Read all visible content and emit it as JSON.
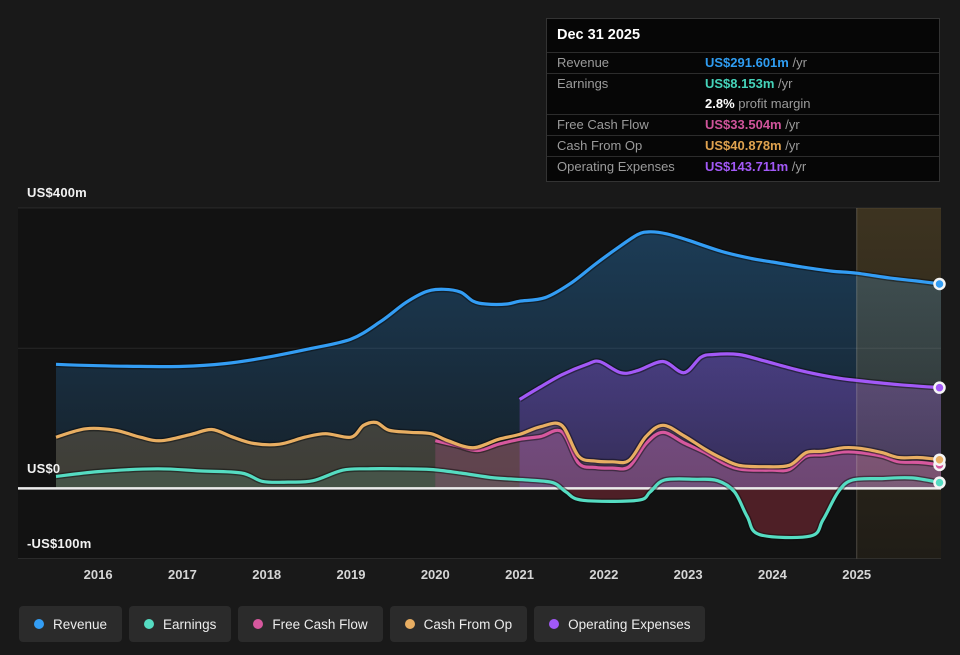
{
  "tooltip": {
    "title": "Dec 31 2025",
    "rows": [
      {
        "label": "Revenue",
        "value": "US$291.601m",
        "unit": "/yr",
        "color": "#2f9df2",
        "sub": false
      },
      {
        "label": "Earnings",
        "value": "US$8.153m",
        "unit": "/yr",
        "color": "#45d4ba",
        "sub": false
      },
      {
        "label": "",
        "value": "2.8%",
        "unit": "profit margin",
        "color": "#ffffff",
        "sub": true
      },
      {
        "label": "Free Cash Flow",
        "value": "US$33.504m",
        "unit": "/yr",
        "color": "#d0549b",
        "sub": false
      },
      {
        "label": "Cash From Op",
        "value": "US$40.878m",
        "unit": "/yr",
        "color": "#dfa24f",
        "sub": false
      },
      {
        "label": "Operating Expenses",
        "value": "US$143.711m",
        "unit": "/yr",
        "color": "#a259f7",
        "sub": false
      }
    ]
  },
  "y_axis": {
    "labels": [
      "US$400m",
      "US$0",
      "-US$100m"
    ]
  },
  "legend": {
    "items": [
      {
        "label": "Revenue",
        "color": "#339df4"
      },
      {
        "label": "Earnings",
        "color": "#55dcc2"
      },
      {
        "label": "Free Cash Flow",
        "color": "#d6589e"
      },
      {
        "label": "Cash From Op",
        "color": "#e8ae62"
      },
      {
        "label": "Operating Expenses",
        "color": "#a259f7"
      }
    ]
  },
  "chart_data": {
    "type": "area",
    "title": "Company financials over time (US$m per year)",
    "x_range": [
      2015.5,
      2026
    ],
    "y_range": [
      -100,
      400
    ],
    "y_unit": "US$m",
    "x_ticks": [
      2016,
      2017,
      2018,
      2019,
      2020,
      2021,
      2022,
      2023,
      2024,
      2025
    ],
    "gridlines_y": [
      400,
      200,
      -100
    ],
    "zero_line": 0,
    "forecast_start_x": 2025,
    "legend_position": "bottom",
    "series": [
      {
        "name": "Revenue",
        "color": "#339df4",
        "points": [
          [
            2015.5,
            177
          ],
          [
            2016,
            175
          ],
          [
            2016.5,
            174
          ],
          [
            2017,
            174
          ],
          [
            2017.5,
            178
          ],
          [
            2018,
            187
          ],
          [
            2018.5,
            199
          ],
          [
            2019,
            213
          ],
          [
            2019.35,
            238
          ],
          [
            2019.65,
            265
          ],
          [
            2019.9,
            281
          ],
          [
            2020.1,
            284
          ],
          [
            2020.3,
            280
          ],
          [
            2020.45,
            267
          ],
          [
            2020.6,
            263
          ],
          [
            2020.85,
            263
          ],
          [
            2021,
            267
          ],
          [
            2021.3,
            272
          ],
          [
            2021.6,
            292
          ],
          [
            2021.9,
            320
          ],
          [
            2022.15,
            342
          ],
          [
            2022.4,
            362
          ],
          [
            2022.55,
            366
          ],
          [
            2022.75,
            363
          ],
          [
            2023,
            354
          ],
          [
            2023.4,
            338
          ],
          [
            2023.75,
            328
          ],
          [
            2024,
            323
          ],
          [
            2024.35,
            316
          ],
          [
            2024.7,
            310
          ],
          [
            2025,
            307
          ],
          [
            2025.4,
            300
          ],
          [
            2025.7,
            296
          ],
          [
            2026,
            291.6
          ]
        ]
      },
      {
        "name": "Earnings",
        "color": "#55dcc2",
        "negative_fill": "#c43a50",
        "points": [
          [
            2015.5,
            17
          ],
          [
            2016,
            24
          ],
          [
            2016.7,
            28
          ],
          [
            2017.2,
            25
          ],
          [
            2017.7,
            22
          ],
          [
            2017.95,
            10
          ],
          [
            2018.25,
            9
          ],
          [
            2018.55,
            11
          ],
          [
            2018.9,
            26
          ],
          [
            2019.2,
            28
          ],
          [
            2019.6,
            28
          ],
          [
            2019.95,
            27
          ],
          [
            2020.3,
            22
          ],
          [
            2020.7,
            15
          ],
          [
            2021.1,
            12
          ],
          [
            2021.4,
            8
          ],
          [
            2021.55,
            -5
          ],
          [
            2021.75,
            -17
          ],
          [
            2022.4,
            -17
          ],
          [
            2022.55,
            -5
          ],
          [
            2022.72,
            12
          ],
          [
            2023.1,
            13
          ],
          [
            2023.35,
            11
          ],
          [
            2023.55,
            -5
          ],
          [
            2023.7,
            -40
          ],
          [
            2023.85,
            -66
          ],
          [
            2024.45,
            -68
          ],
          [
            2024.6,
            -45
          ],
          [
            2024.78,
            -5
          ],
          [
            2024.95,
            12
          ],
          [
            2025.3,
            14
          ],
          [
            2025.65,
            15
          ],
          [
            2026,
            8.2
          ]
        ]
      },
      {
        "name": "Cash From Op",
        "color": "#e8ae62",
        "points": [
          [
            2015.5,
            73
          ],
          [
            2015.85,
            85
          ],
          [
            2016.2,
            83
          ],
          [
            2016.5,
            73
          ],
          [
            2016.75,
            68
          ],
          [
            2017.1,
            77
          ],
          [
            2017.35,
            84
          ],
          [
            2017.6,
            73
          ],
          [
            2017.85,
            64
          ],
          [
            2018.15,
            63
          ],
          [
            2018.45,
            73
          ],
          [
            2018.7,
            78
          ],
          [
            2019,
            73
          ],
          [
            2019.15,
            90
          ],
          [
            2019.3,
            94
          ],
          [
            2019.45,
            83
          ],
          [
            2019.7,
            80
          ],
          [
            2019.95,
            78
          ],
          [
            2020.15,
            68
          ],
          [
            2020.45,
            58
          ],
          [
            2020.75,
            70
          ],
          [
            2021,
            77
          ],
          [
            2021.25,
            88
          ],
          [
            2021.5,
            90
          ],
          [
            2021.7,
            46
          ],
          [
            2021.9,
            39
          ],
          [
            2022.1,
            38
          ],
          [
            2022.3,
            40
          ],
          [
            2022.5,
            74
          ],
          [
            2022.7,
            90
          ],
          [
            2022.95,
            75
          ],
          [
            2023.2,
            56
          ],
          [
            2023.4,
            43
          ],
          [
            2023.6,
            33
          ],
          [
            2023.9,
            31
          ],
          [
            2024.2,
            33
          ],
          [
            2024.4,
            51
          ],
          [
            2024.6,
            53
          ],
          [
            2024.85,
            58
          ],
          [
            2025.05,
            57
          ],
          [
            2025.3,
            51
          ],
          [
            2025.5,
            44
          ],
          [
            2025.75,
            44
          ],
          [
            2026,
            40.9
          ]
        ]
      },
      {
        "name": "Free Cash Flow",
        "color": "#d6589e",
        "points": [
          [
            2020,
            68
          ],
          [
            2020.25,
            61
          ],
          [
            2020.5,
            54
          ],
          [
            2020.75,
            63
          ],
          [
            2021,
            70
          ],
          [
            2021.25,
            74
          ],
          [
            2021.5,
            81
          ],
          [
            2021.7,
            36
          ],
          [
            2021.9,
            30
          ],
          [
            2022.1,
            29
          ],
          [
            2022.3,
            31
          ],
          [
            2022.5,
            64
          ],
          [
            2022.7,
            80
          ],
          [
            2022.95,
            65
          ],
          [
            2023.2,
            51
          ],
          [
            2023.45,
            34
          ],
          [
            2023.65,
            27
          ],
          [
            2024,
            26
          ],
          [
            2024.2,
            27
          ],
          [
            2024.4,
            46
          ],
          [
            2024.6,
            48
          ],
          [
            2024.85,
            52
          ],
          [
            2025.05,
            51
          ],
          [
            2025.3,
            46
          ],
          [
            2025.5,
            38
          ],
          [
            2025.75,
            37
          ],
          [
            2026,
            33.5
          ]
        ]
      },
      {
        "name": "Operating Expenses",
        "color": "#a259f7",
        "points": [
          [
            2021,
            127
          ],
          [
            2021.25,
            145
          ],
          [
            2021.5,
            162
          ],
          [
            2021.8,
            177
          ],
          [
            2021.95,
            181
          ],
          [
            2022.2,
            165
          ],
          [
            2022.4,
            168
          ],
          [
            2022.7,
            181
          ],
          [
            2022.95,
            165
          ],
          [
            2023.15,
            187
          ],
          [
            2023.3,
            191
          ],
          [
            2023.6,
            191
          ],
          [
            2023.9,
            182
          ],
          [
            2024.3,
            169
          ],
          [
            2024.7,
            159
          ],
          [
            2025,
            154
          ],
          [
            2025.5,
            148
          ],
          [
            2026,
            143.7
          ]
        ]
      }
    ]
  }
}
